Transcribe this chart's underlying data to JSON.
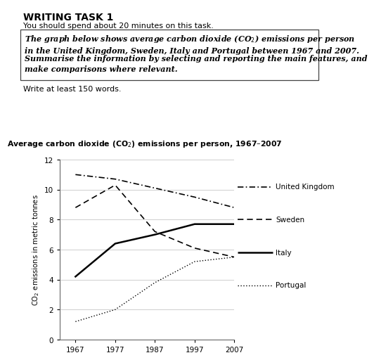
{
  "years": [
    1967,
    1977,
    1987,
    1997,
    2007
  ],
  "uk": [
    11.0,
    10.7,
    10.1,
    9.5,
    8.8
  ],
  "sweden": [
    8.8,
    10.3,
    7.2,
    6.1,
    5.5
  ],
  "italy": [
    4.2,
    6.4,
    7.0,
    7.7,
    7.7
  ],
  "portugal": [
    1.2,
    2.0,
    3.8,
    5.2,
    5.5
  ],
  "title": "Average carbon dioxide (CO$_2$) emissions per person, 1967–2007",
  "ylabel": "CO$_2$ emissions in metric tonnes",
  "ylim": [
    0,
    12
  ],
  "yticks": [
    0,
    2,
    4,
    6,
    8,
    10,
    12
  ],
  "xticks": [
    1967,
    1977,
    1987,
    1997,
    2007
  ],
  "header_title": "WRITING TASK 1",
  "header_subtitle": "You should spend about 20 minutes on this task.",
  "footer_text": "Write at least 150 words.",
  "bg_color": "#ffffff"
}
